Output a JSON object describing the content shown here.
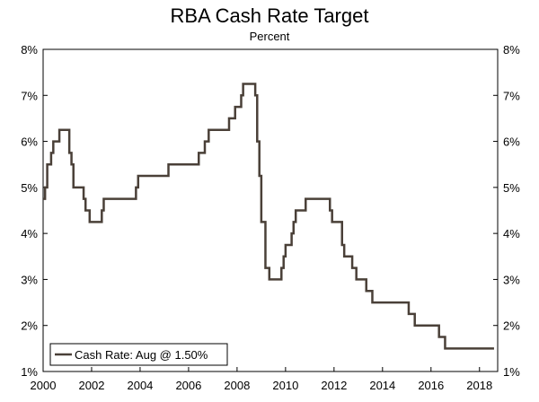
{
  "chart_data": {
    "type": "line",
    "title": "RBA Cash Rate Target",
    "subtitle": "Percent",
    "xlabel": "",
    "ylabel": "",
    "xlim": [
      2000,
      2018.75
    ],
    "ylim": [
      1,
      8
    ],
    "x_ticks": [
      2000,
      2002,
      2004,
      2006,
      2008,
      2010,
      2012,
      2014,
      2016,
      2018
    ],
    "x_tick_labels": [
      "2000",
      "2002",
      "2004",
      "2006",
      "2008",
      "2010",
      "2012",
      "2014",
      "2016",
      "2018"
    ],
    "y_ticks": [
      1,
      2,
      3,
      4,
      5,
      6,
      7,
      8
    ],
    "y_tick_labels": [
      "1%",
      "2%",
      "3%",
      "4%",
      "5%",
      "6%",
      "7%",
      "8%"
    ],
    "grid": false,
    "legend": {
      "position": "bottom-left",
      "entries": [
        "Cash Rate: Aug @ 1.50%"
      ]
    },
    "line_color": "#4a4038",
    "series": [
      {
        "name": "Cash Rate: Aug @ 1.50%",
        "step": true,
        "points": [
          [
            2000.0,
            4.75
          ],
          [
            2000.08,
            5.0
          ],
          [
            2000.17,
            5.5
          ],
          [
            2000.33,
            5.75
          ],
          [
            2000.42,
            6.0
          ],
          [
            2000.67,
            6.25
          ],
          [
            2001.08,
            5.75
          ],
          [
            2001.17,
            5.5
          ],
          [
            2001.25,
            5.0
          ],
          [
            2001.67,
            4.75
          ],
          [
            2001.75,
            4.5
          ],
          [
            2001.92,
            4.25
          ],
          [
            2002.42,
            4.5
          ],
          [
            2002.5,
            4.75
          ],
          [
            2003.83,
            5.0
          ],
          [
            2003.92,
            5.25
          ],
          [
            2005.17,
            5.5
          ],
          [
            2006.42,
            5.75
          ],
          [
            2006.67,
            6.0
          ],
          [
            2006.83,
            6.25
          ],
          [
            2007.67,
            6.5
          ],
          [
            2007.92,
            6.75
          ],
          [
            2008.17,
            7.0
          ],
          [
            2008.25,
            7.25
          ],
          [
            2008.75,
            7.0
          ],
          [
            2008.83,
            6.0
          ],
          [
            2008.92,
            5.25
          ],
          [
            2009.0,
            4.25
          ],
          [
            2009.17,
            3.25
          ],
          [
            2009.33,
            3.0
          ],
          [
            2009.83,
            3.25
          ],
          [
            2009.92,
            3.5
          ],
          [
            2010.0,
            3.75
          ],
          [
            2010.25,
            4.0
          ],
          [
            2010.33,
            4.25
          ],
          [
            2010.42,
            4.5
          ],
          [
            2010.83,
            4.75
          ],
          [
            2011.83,
            4.5
          ],
          [
            2011.92,
            4.25
          ],
          [
            2012.33,
            3.75
          ],
          [
            2012.42,
            3.5
          ],
          [
            2012.75,
            3.25
          ],
          [
            2012.92,
            3.0
          ],
          [
            2013.33,
            2.75
          ],
          [
            2013.58,
            2.5
          ],
          [
            2015.08,
            2.25
          ],
          [
            2015.33,
            2.0
          ],
          [
            2016.33,
            1.75
          ],
          [
            2016.58,
            1.5
          ],
          [
            2018.6,
            1.5
          ]
        ]
      }
    ]
  }
}
